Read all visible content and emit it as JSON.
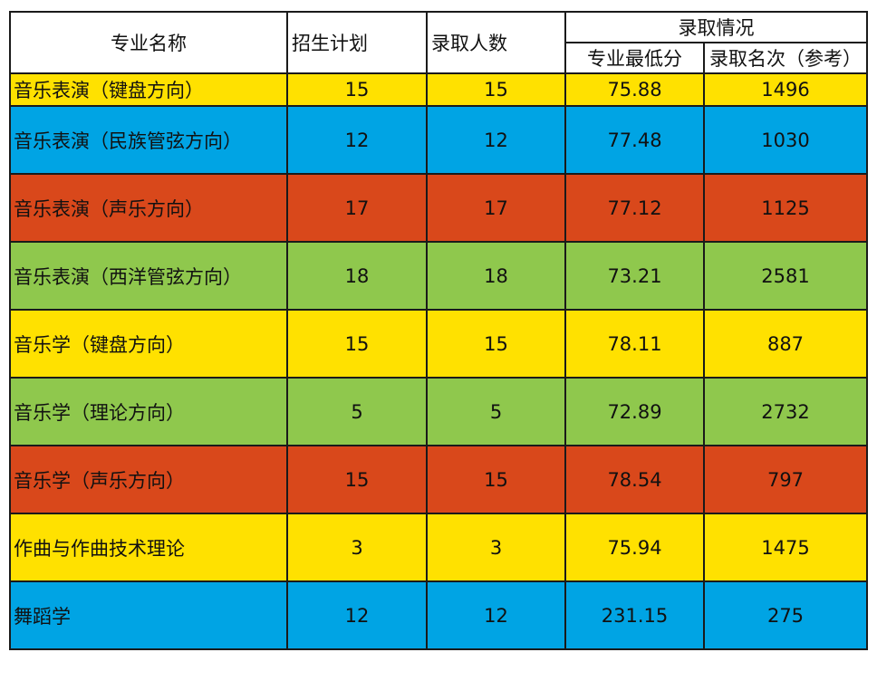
{
  "colors": {
    "yellow": "#ffe100",
    "blue": "#00a4e4",
    "orange": "#d9481b",
    "green": "#8fc84d"
  },
  "header": {
    "major_name": "专业名称",
    "enrollment_plan": "招生计划",
    "admitted_count": "录取人数",
    "admission_status": "录取情况",
    "min_score": "专业最低分",
    "admission_rank": "录取名次（参考）"
  },
  "rows": [
    {
      "name": "音乐表演（键盘方向）",
      "plan": "15",
      "admitted": "15",
      "min_score": "75.88",
      "rank": "1496",
      "color": "#ffe100"
    },
    {
      "name": "音乐表演（民族管弦方向）",
      "plan": "12",
      "admitted": "12",
      "min_score": "77.48",
      "rank": "1030",
      "color": "#00a4e4"
    },
    {
      "name": "音乐表演（声乐方向）",
      "plan": "17",
      "admitted": "17",
      "min_score": "77.12",
      "rank": "1125",
      "color": "#d9481b"
    },
    {
      "name": "音乐表演（西洋管弦方向）",
      "plan": "18",
      "admitted": "18",
      "min_score": "73.21",
      "rank": "2581",
      "color": "#8fc84d"
    },
    {
      "name": "音乐学（键盘方向）",
      "plan": "15",
      "admitted": "15",
      "min_score": "78.11",
      "rank": "887",
      "color": "#ffe100"
    },
    {
      "name": "音乐学（理论方向）",
      "plan": "5",
      "admitted": "5",
      "min_score": "72.89",
      "rank": "2732",
      "color": "#8fc84d"
    },
    {
      "name": "音乐学（声乐方向）",
      "plan": "15",
      "admitted": "15",
      "min_score": "78.54",
      "rank": "797",
      "color": "#d9481b"
    },
    {
      "name": "作曲与作曲技术理论",
      "plan": "3",
      "admitted": "3",
      "min_score": "75.94",
      "rank": "1475",
      "color": "#ffe100"
    },
    {
      "name": "舞蹈学",
      "plan": "12",
      "admitted": "12",
      "min_score": "231.15",
      "rank": "275",
      "color": "#00a4e4"
    }
  ]
}
